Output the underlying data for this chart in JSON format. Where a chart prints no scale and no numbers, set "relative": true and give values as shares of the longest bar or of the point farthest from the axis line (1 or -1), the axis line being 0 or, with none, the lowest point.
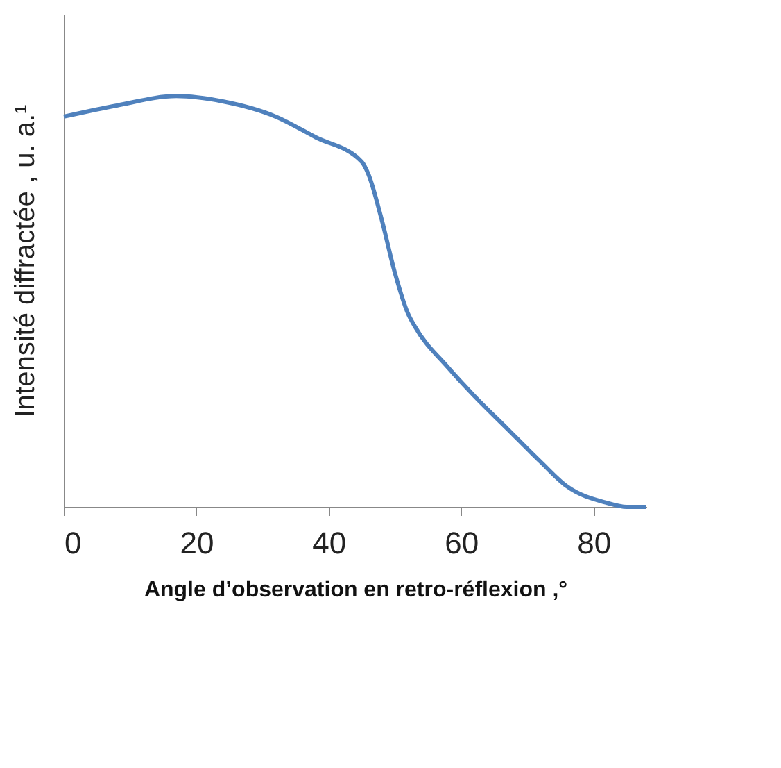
{
  "chart_data": {
    "type": "line",
    "relative": true,
    "xlabel": "Angle d’observation en retro-réflexion ,°",
    "ylabel": "Intensité diffractée , u. a.¹",
    "x": [
      0,
      8,
      17,
      24,
      32,
      38,
      45,
      46,
      48,
      50,
      52,
      53,
      58,
      62,
      67,
      72,
      76,
      82,
      85,
      88
    ],
    "series": [
      {
        "color": "#4f81bd",
        "values": [
          0.95,
          0.977,
          1.0,
          0.987,
          0.95,
          0.9,
          0.84,
          0.81,
          0.7,
          0.57,
          0.47,
          0.44,
          0.34,
          0.27,
          0.19,
          0.11,
          0.05,
          0.01,
          0,
          0
        ]
      }
    ],
    "xlim": [
      0,
      88
    ],
    "xticks": [
      0,
      20,
      40,
      60,
      80
    ],
    "grid": false,
    "tick_labels": "x",
    "marker": "none",
    "line_style": "solid"
  }
}
